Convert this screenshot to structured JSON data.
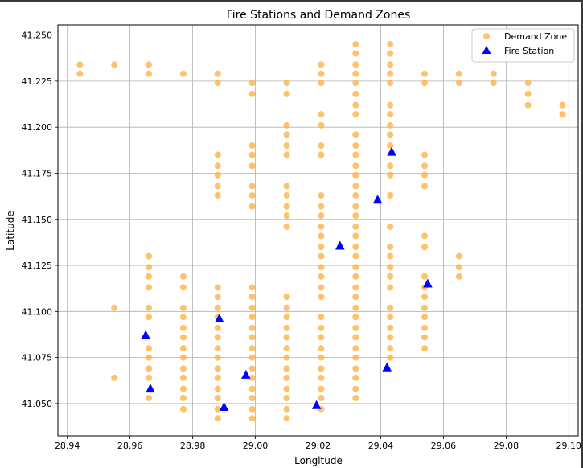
{
  "chart_data": {
    "type": "scatter",
    "title": "Fire Stations and Demand Zones",
    "xlabel": "Longitude",
    "ylabel": "Latitude",
    "xlim": [
      28.937,
      29.103
    ],
    "ylim": [
      41.0325,
      41.2555
    ],
    "xticks": [
      "28.94",
      "28.96",
      "28.98",
      "29.00",
      "29.02",
      "29.04",
      "29.06",
      "29.08",
      "29.10"
    ],
    "yticks": [
      "41.050",
      "41.075",
      "41.100",
      "41.125",
      "41.150",
      "41.175",
      "41.200",
      "41.225",
      "41.250"
    ],
    "grid": true,
    "legend_position": "top-right",
    "colors": {
      "demand": "#ffb347",
      "station": "#0000ff"
    },
    "series": [
      {
        "name": "Demand Zone",
        "marker": "circle",
        "points": [
          [
            28.944,
            41.234
          ],
          [
            28.944,
            41.229
          ],
          [
            28.955,
            41.234
          ],
          [
            28.966,
            41.234
          ],
          [
            28.966,
            41.229
          ],
          [
            28.977,
            41.229
          ],
          [
            28.988,
            41.229
          ],
          [
            28.988,
            41.224
          ],
          [
            28.999,
            41.224
          ],
          [
            28.999,
            41.218
          ],
          [
            29.01,
            41.224
          ],
          [
            29.01,
            41.218
          ],
          [
            29.021,
            41.234
          ],
          [
            29.021,
            41.229
          ],
          [
            29.021,
            41.224
          ],
          [
            29.032,
            41.245
          ],
          [
            29.032,
            41.24
          ],
          [
            29.032,
            41.234
          ],
          [
            29.032,
            41.229
          ],
          [
            29.032,
            41.224
          ],
          [
            29.032,
            41.218
          ],
          [
            29.032,
            41.212
          ],
          [
            29.032,
            41.207
          ],
          [
            29.043,
            41.245
          ],
          [
            29.043,
            41.24
          ],
          [
            29.043,
            41.234
          ],
          [
            29.043,
            41.229
          ],
          [
            29.043,
            41.224
          ],
          [
            29.043,
            41.212
          ],
          [
            29.043,
            41.207
          ],
          [
            29.043,
            41.201
          ],
          [
            29.043,
            41.196
          ],
          [
            29.043,
            41.19
          ],
          [
            29.054,
            41.229
          ],
          [
            29.054,
            41.224
          ],
          [
            29.065,
            41.229
          ],
          [
            29.065,
            41.224
          ],
          [
            29.076,
            41.229
          ],
          [
            29.076,
            41.224
          ],
          [
            29.087,
            41.224
          ],
          [
            29.087,
            41.218
          ],
          [
            29.087,
            41.212
          ],
          [
            29.098,
            41.212
          ],
          [
            29.098,
            41.207
          ],
          [
            29.01,
            41.201
          ],
          [
            29.01,
            41.196
          ],
          [
            29.01,
            41.19
          ],
          [
            29.01,
            41.185
          ],
          [
            29.021,
            41.207
          ],
          [
            29.021,
            41.201
          ],
          [
            29.021,
            41.19
          ],
          [
            29.021,
            41.185
          ],
          [
            29.032,
            41.196
          ],
          [
            29.032,
            41.19
          ],
          [
            29.032,
            41.185
          ],
          [
            29.032,
            41.179
          ],
          [
            29.032,
            41.174
          ],
          [
            29.032,
            41.168
          ],
          [
            29.032,
            41.163
          ],
          [
            29.032,
            41.157
          ],
          [
            29.032,
            41.152
          ],
          [
            29.032,
            41.146
          ],
          [
            29.032,
            41.141
          ],
          [
            29.032,
            41.135
          ],
          [
            29.032,
            41.13
          ],
          [
            29.032,
            41.124
          ],
          [
            29.032,
            41.119
          ],
          [
            29.032,
            41.113
          ],
          [
            29.032,
            41.108
          ],
          [
            29.032,
            41.102
          ],
          [
            29.032,
            41.097
          ],
          [
            29.032,
            41.091
          ],
          [
            29.032,
            41.086
          ],
          [
            29.032,
            41.08
          ],
          [
            29.032,
            41.075
          ],
          [
            29.032,
            41.069
          ],
          [
            29.032,
            41.064
          ],
          [
            29.032,
            41.058
          ],
          [
            29.032,
            41.053
          ],
          [
            29.043,
            41.179
          ],
          [
            29.043,
            41.174
          ],
          [
            29.043,
            41.163
          ],
          [
            29.043,
            41.146
          ],
          [
            29.043,
            41.135
          ],
          [
            29.043,
            41.13
          ],
          [
            29.043,
            41.124
          ],
          [
            29.043,
            41.119
          ],
          [
            29.043,
            41.113
          ],
          [
            29.043,
            41.102
          ],
          [
            29.043,
            41.097
          ],
          [
            29.043,
            41.091
          ],
          [
            29.043,
            41.086
          ],
          [
            29.043,
            41.08
          ],
          [
            29.043,
            41.075
          ],
          [
            29.054,
            41.185
          ],
          [
            29.054,
            41.179
          ],
          [
            29.054,
            41.174
          ],
          [
            29.054,
            41.168
          ],
          [
            29.054,
            41.141
          ],
          [
            29.054,
            41.135
          ],
          [
            29.054,
            41.119
          ],
          [
            29.054,
            41.113
          ],
          [
            29.054,
            41.108
          ],
          [
            29.054,
            41.102
          ],
          [
            29.054,
            41.097
          ],
          [
            29.054,
            41.091
          ],
          [
            29.054,
            41.086
          ],
          [
            29.054,
            41.08
          ],
          [
            29.065,
            41.13
          ],
          [
            29.065,
            41.124
          ],
          [
            29.065,
            41.119
          ],
          [
            28.988,
            41.185
          ],
          [
            28.988,
            41.179
          ],
          [
            28.988,
            41.174
          ],
          [
            28.988,
            41.168
          ],
          [
            28.988,
            41.163
          ],
          [
            28.999,
            41.19
          ],
          [
            28.999,
            41.185
          ],
          [
            28.999,
            41.179
          ],
          [
            28.999,
            41.168
          ],
          [
            28.999,
            41.163
          ],
          [
            28.999,
            41.157
          ],
          [
            29.01,
            41.168
          ],
          [
            29.01,
            41.163
          ],
          [
            29.01,
            41.157
          ],
          [
            29.01,
            41.152
          ],
          [
            29.01,
            41.146
          ],
          [
            29.021,
            41.163
          ],
          [
            29.021,
            41.157
          ],
          [
            29.021,
            41.152
          ],
          [
            29.021,
            41.146
          ],
          [
            29.021,
            41.141
          ],
          [
            29.021,
            41.135
          ],
          [
            29.021,
            41.13
          ],
          [
            29.021,
            41.124
          ],
          [
            29.021,
            41.119
          ],
          [
            29.021,
            41.113
          ],
          [
            29.021,
            41.108
          ],
          [
            29.021,
            41.097
          ],
          [
            29.021,
            41.091
          ],
          [
            29.021,
            41.086
          ],
          [
            29.021,
            41.08
          ],
          [
            29.021,
            41.075
          ],
          [
            29.021,
            41.069
          ],
          [
            29.021,
            41.064
          ],
          [
            29.021,
            41.058
          ],
          [
            29.021,
            41.053
          ],
          [
            29.021,
            41.047
          ],
          [
            28.966,
            41.13
          ],
          [
            28.966,
            41.124
          ],
          [
            28.966,
            41.119
          ],
          [
            28.966,
            41.113
          ],
          [
            28.966,
            41.102
          ],
          [
            28.966,
            41.097
          ],
          [
            28.966,
            41.08
          ],
          [
            28.966,
            41.075
          ],
          [
            28.966,
            41.069
          ],
          [
            28.966,
            41.064
          ],
          [
            28.966,
            41.053
          ],
          [
            28.955,
            41.102
          ],
          [
            28.955,
            41.064
          ],
          [
            28.977,
            41.119
          ],
          [
            28.977,
            41.113
          ],
          [
            28.977,
            41.102
          ],
          [
            28.977,
            41.097
          ],
          [
            28.977,
            41.091
          ],
          [
            28.977,
            41.086
          ],
          [
            28.977,
            41.08
          ],
          [
            28.977,
            41.075
          ],
          [
            28.977,
            41.069
          ],
          [
            28.977,
            41.064
          ],
          [
            28.977,
            41.058
          ],
          [
            28.977,
            41.053
          ],
          [
            28.977,
            41.047
          ],
          [
            28.988,
            41.113
          ],
          [
            28.988,
            41.108
          ],
          [
            28.988,
            41.102
          ],
          [
            28.988,
            41.097
          ],
          [
            28.988,
            41.091
          ],
          [
            28.988,
            41.086
          ],
          [
            28.988,
            41.08
          ],
          [
            28.988,
            41.075
          ],
          [
            28.988,
            41.069
          ],
          [
            28.988,
            41.064
          ],
          [
            28.988,
            41.058
          ],
          [
            28.988,
            41.053
          ],
          [
            28.988,
            41.047
          ],
          [
            28.988,
            41.042
          ],
          [
            28.999,
            41.113
          ],
          [
            28.999,
            41.108
          ],
          [
            28.999,
            41.102
          ],
          [
            28.999,
            41.097
          ],
          [
            28.999,
            41.091
          ],
          [
            28.999,
            41.086
          ],
          [
            28.999,
            41.08
          ],
          [
            28.999,
            41.075
          ],
          [
            28.999,
            41.069
          ],
          [
            28.999,
            41.064
          ],
          [
            28.999,
            41.058
          ],
          [
            28.999,
            41.053
          ],
          [
            28.999,
            41.047
          ],
          [
            28.999,
            41.042
          ],
          [
            29.01,
            41.108
          ],
          [
            29.01,
            41.102
          ],
          [
            29.01,
            41.097
          ],
          [
            29.01,
            41.091
          ],
          [
            29.01,
            41.086
          ],
          [
            29.01,
            41.08
          ],
          [
            29.01,
            41.075
          ],
          [
            29.01,
            41.069
          ],
          [
            29.01,
            41.064
          ],
          [
            29.01,
            41.058
          ],
          [
            29.01,
            41.053
          ],
          [
            29.01,
            41.047
          ],
          [
            29.01,
            41.042
          ]
        ]
      },
      {
        "name": "Fire Station",
        "marker": "triangle",
        "points": [
          [
            29.0435,
            41.1865
          ],
          [
            29.039,
            41.1605
          ],
          [
            29.027,
            41.1355
          ],
          [
            29.055,
            41.115
          ],
          [
            28.9885,
            41.096
          ],
          [
            28.965,
            41.087
          ],
          [
            29.042,
            41.0695
          ],
          [
            28.997,
            41.0655
          ],
          [
            28.9665,
            41.058
          ],
          [
            28.99,
            41.048
          ],
          [
            29.0195,
            41.049
          ]
        ]
      }
    ]
  }
}
